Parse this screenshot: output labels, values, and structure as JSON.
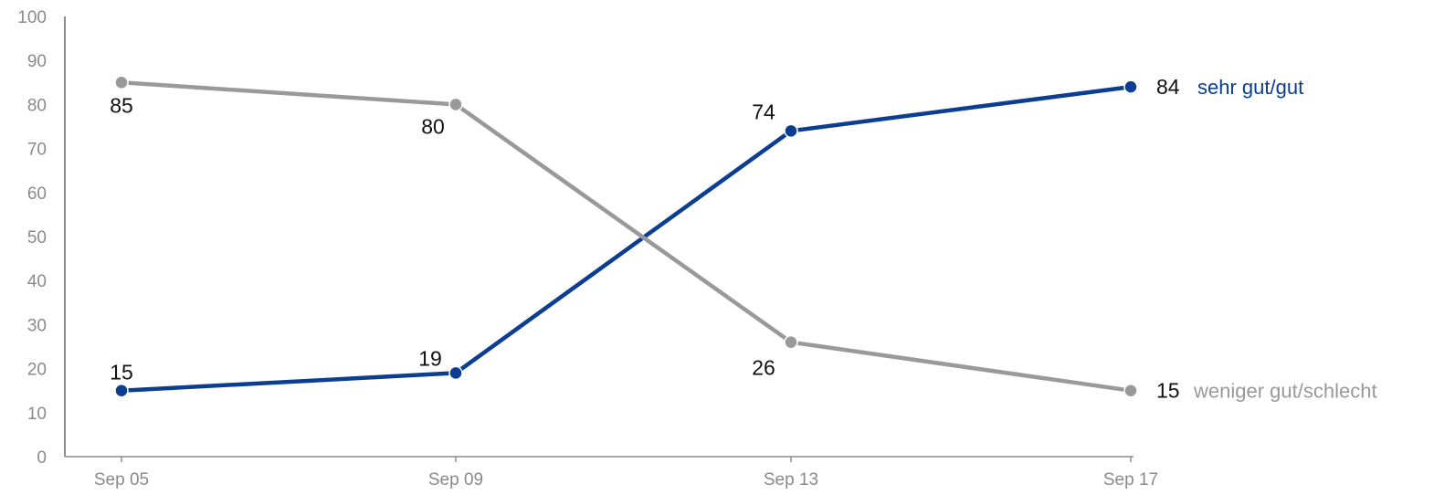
{
  "chart_data": {
    "type": "line",
    "x": [
      "Sep 05",
      "Sep 09",
      "Sep 13",
      "Sep 17"
    ],
    "yticks": [
      "0",
      "10",
      "20",
      "30",
      "40",
      "50",
      "60",
      "70",
      "80",
      "90",
      "100"
    ],
    "ylim": [
      0,
      100
    ],
    "grid": false,
    "legend": "none (series names labeled at right end of lines)",
    "series": [
      {
        "name": "sehr gut/gut",
        "values": [
          15,
          19,
          74,
          84
        ],
        "labels": [
          "15",
          "19",
          "74",
          "84"
        ],
        "color": "#0b3d91"
      },
      {
        "name": "weniger gut/schlecht",
        "values": [
          85,
          80,
          26,
          15
        ],
        "labels": [
          "85",
          "80",
          "26",
          "15"
        ],
        "color": "#999999"
      }
    ]
  }
}
